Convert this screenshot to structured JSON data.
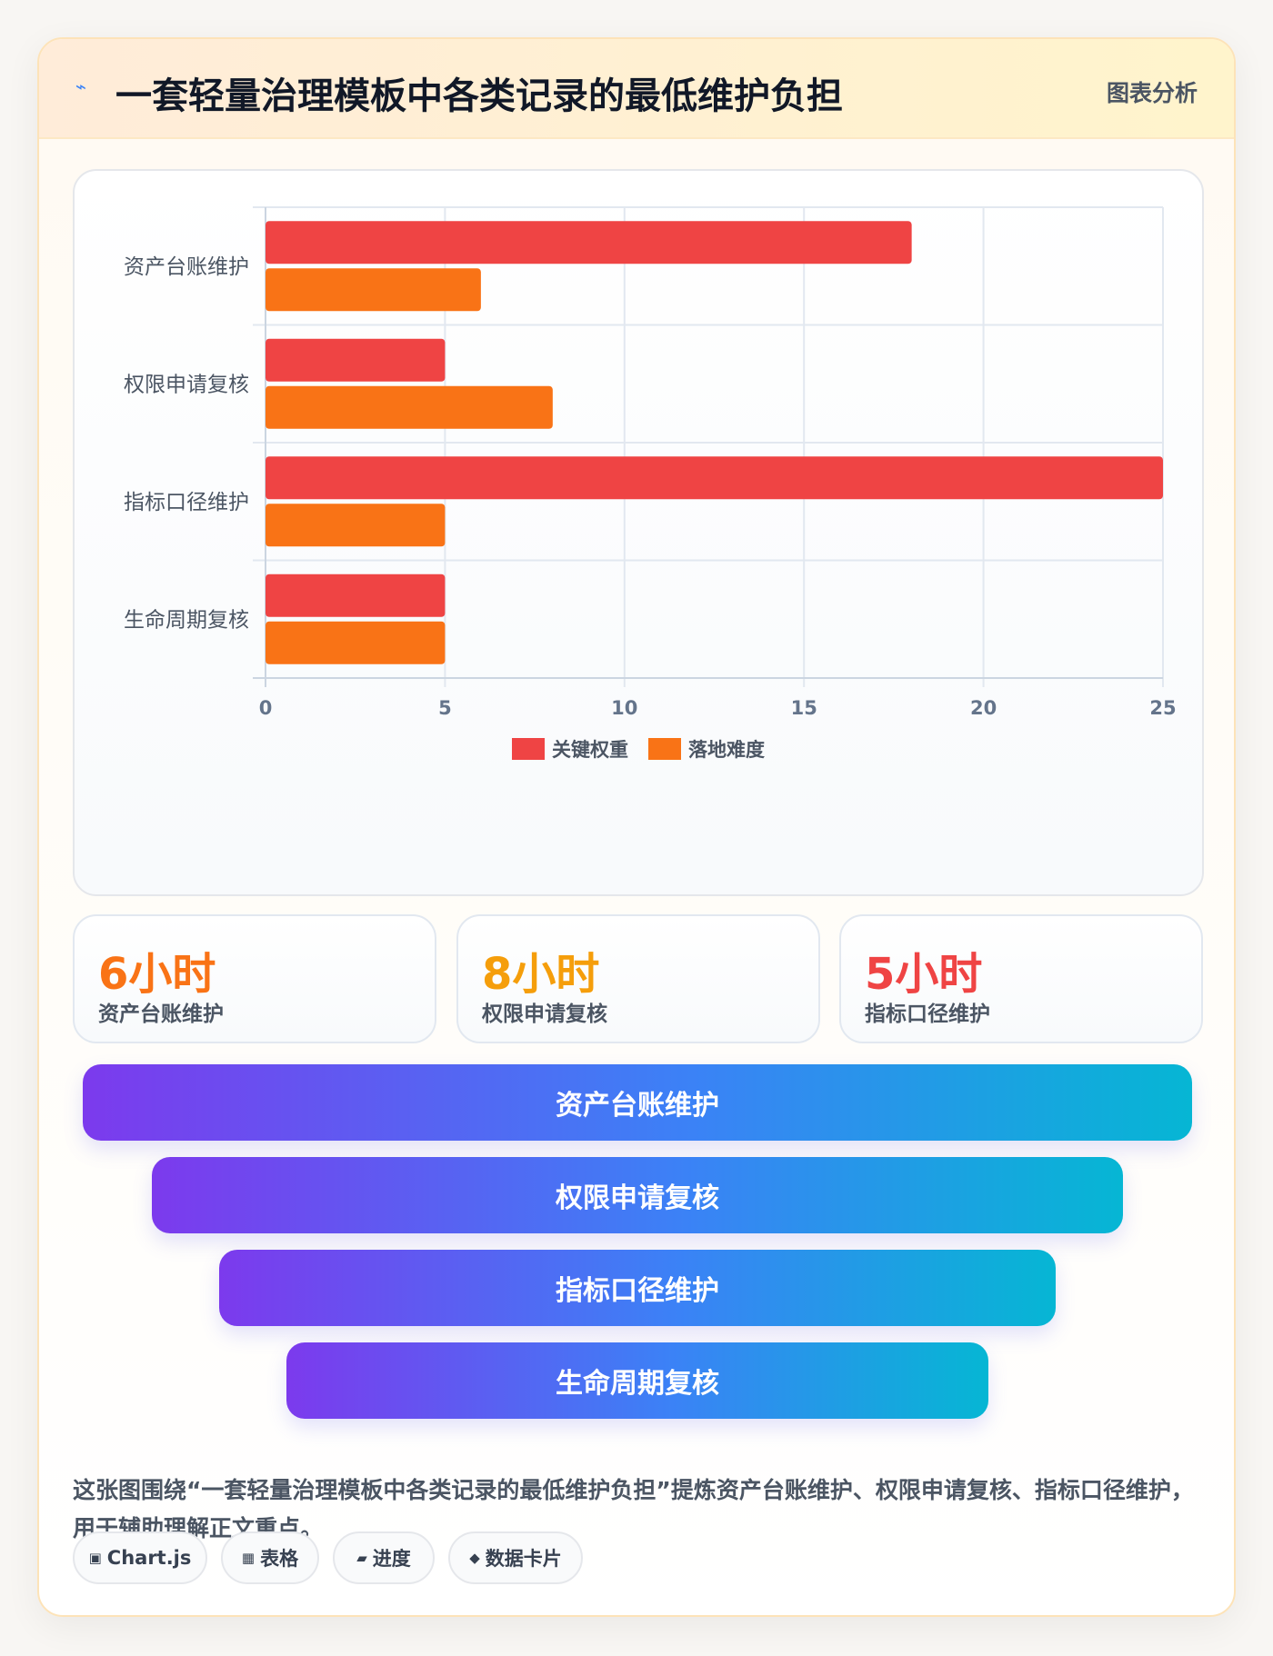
{
  "header": {
    "icon": "⌁",
    "title": "一套轻量治理模板中各类记录的最低维护负担",
    "tag": "图表分析"
  },
  "chart_data": {
    "type": "bar",
    "orientation": "horizontal",
    "categories": [
      "资产台账维护",
      "权限申请复核",
      "指标口径维护",
      "生命周期复核"
    ],
    "series": [
      {
        "name": "关键权重",
        "color": "#ef4444",
        "values": [
          18,
          5,
          25,
          5
        ]
      },
      {
        "name": "落地难度",
        "color": "#f97316",
        "values": [
          6,
          8,
          5,
          5
        ]
      }
    ],
    "xlim": [
      0,
      25
    ],
    "xticks": [
      "0",
      "5",
      "10",
      "15",
      "20",
      "25"
    ],
    "grid": true,
    "legend_position": "bottom"
  },
  "stats": [
    {
      "value": "6小时",
      "label": "资产台账维护",
      "color": "#f97316"
    },
    {
      "value": "8小时",
      "label": "权限申请复核",
      "color": "#f59e0b"
    },
    {
      "value": "5小时",
      "label": "指标口径维护",
      "color": "#ef4444"
    }
  ],
  "funnel": [
    "资产台账维护",
    "权限申请复核",
    "指标口径维护",
    "生命周期复核"
  ],
  "description": "这张图围绕“一套轻量治理模板中各类记录的最低维护负担”提炼资产台账维护、权限申请复核、指标口径维护，用于辅助理解正文重点。",
  "chips": [
    {
      "icon": "▣",
      "label": "Chart.js"
    },
    {
      "icon": "▦",
      "label": "表格"
    },
    {
      "icon": "▰",
      "label": "进度"
    },
    {
      "icon": "◆",
      "label": "数据卡片"
    }
  ]
}
